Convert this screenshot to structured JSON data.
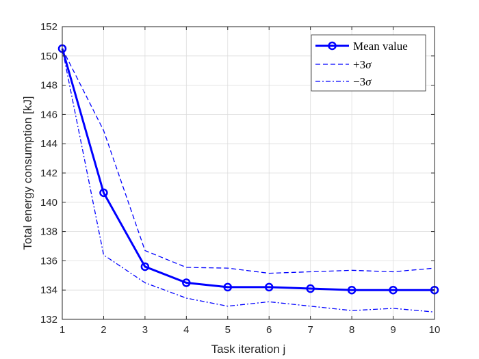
{
  "chart_data": {
    "type": "line",
    "xlabel": "Task iteration j",
    "ylabel": "Total energy consumption [kJ]",
    "xlim": [
      1,
      10
    ],
    "ylim": [
      132,
      152
    ],
    "xticks": [
      1,
      2,
      3,
      4,
      5,
      6,
      7,
      8,
      9,
      10
    ],
    "yticks": [
      132,
      134,
      136,
      138,
      140,
      142,
      144,
      146,
      148,
      150,
      152
    ],
    "grid": true,
    "legend_position": "top-right",
    "x": [
      1,
      2,
      3,
      4,
      5,
      6,
      7,
      8,
      9,
      10
    ],
    "series": [
      {
        "key": "mean",
        "name": "Mean value",
        "style": "solid-circle-markers",
        "color": "#0000ff",
        "values": [
          150.5,
          140.65,
          135.6,
          134.5,
          134.2,
          134.2,
          134.1,
          134.0,
          134.0,
          134.0
        ]
      },
      {
        "key": "plus3sigma",
        "name": "+3σ",
        "legend_sign": "+",
        "legend_num": "3",
        "legend_sym": "σ",
        "style": "dashed",
        "color": "#0000ff",
        "values": [
          150.5,
          144.9,
          136.7,
          135.55,
          135.5,
          135.15,
          135.25,
          135.35,
          135.25,
          135.5
        ]
      },
      {
        "key": "minus3sigma",
        "name": "−3σ",
        "legend_sign": "−",
        "legend_num": "3",
        "legend_sym": "σ",
        "style": "dash-dot",
        "color": "#0000ff",
        "values": [
          150.5,
          136.4,
          134.5,
          133.45,
          132.9,
          133.2,
          132.9,
          132.6,
          132.75,
          132.5
        ]
      }
    ]
  }
}
